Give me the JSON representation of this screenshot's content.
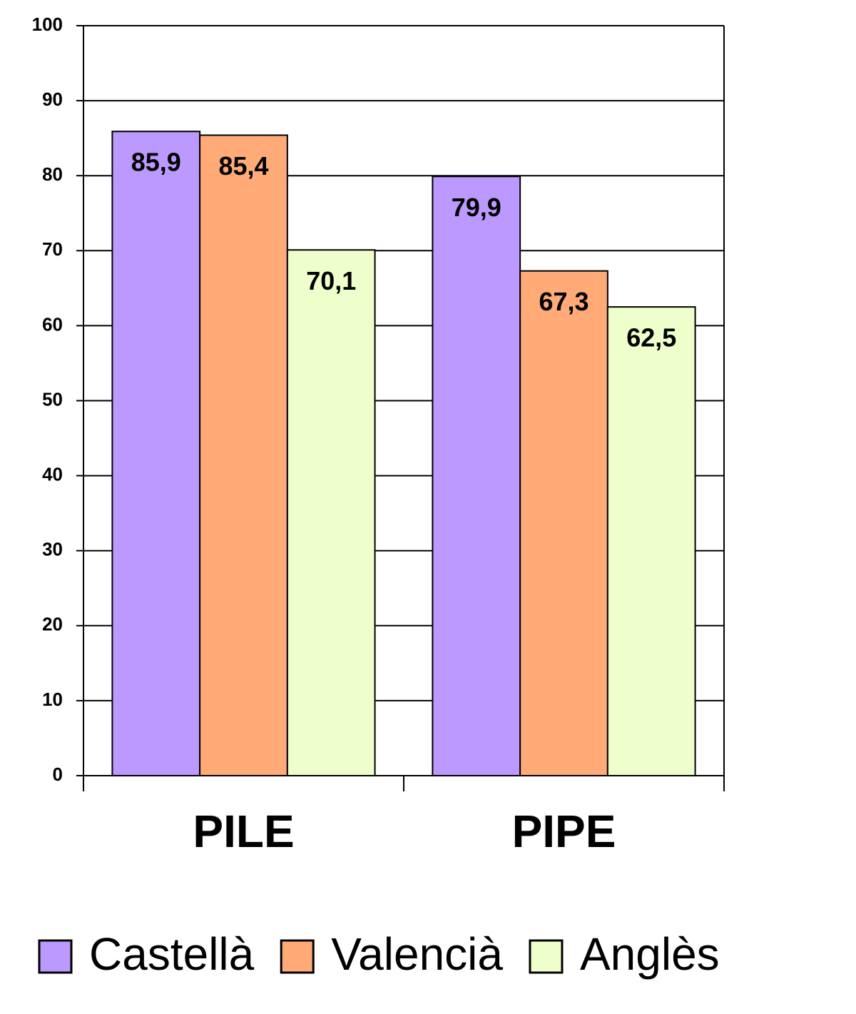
{
  "chart_data": {
    "type": "bar",
    "categories": [
      "PILE",
      "PIPE"
    ],
    "series": [
      {
        "name": "Castellà",
        "color": "#bb99ff",
        "values": [
          85.9,
          79.9
        ],
        "value_labels": [
          "85,9",
          "79,9"
        ]
      },
      {
        "name": "Valencià",
        "color": "#ffaa77",
        "values": [
          85.4,
          67.3
        ],
        "value_labels": [
          "85,4",
          "67,3"
        ]
      },
      {
        "name": "Anglès",
        "color": "#eeffcc",
        "values": [
          70.1,
          62.5
        ],
        "value_labels": [
          "70,1",
          "62,5"
        ]
      }
    ],
    "ylim": [
      0,
      100
    ],
    "yticks": [
      0,
      10,
      20,
      30,
      40,
      50,
      60,
      70,
      80,
      90,
      100
    ],
    "grid": true,
    "legend": "bottom"
  }
}
